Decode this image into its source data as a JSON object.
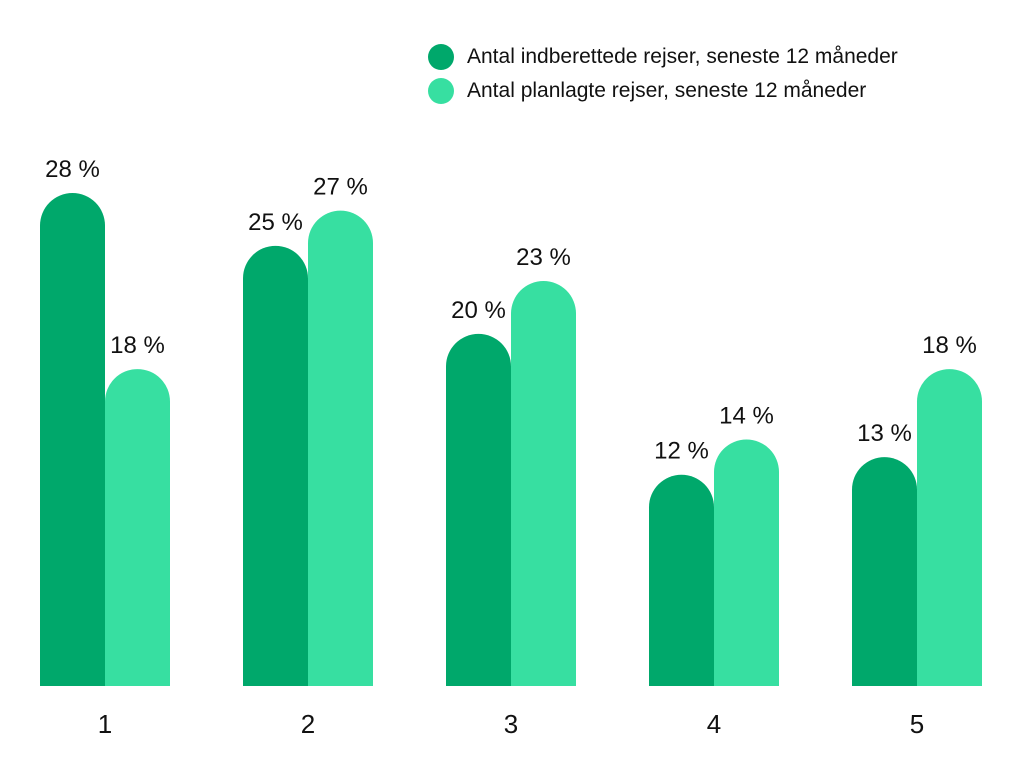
{
  "chart_data": {
    "type": "bar",
    "title": "",
    "xlabel": "",
    "ylabel": "",
    "categories": [
      "1",
      "2",
      "3",
      "4",
      "5"
    ],
    "ylim": [
      0,
      28
    ],
    "grid": false,
    "legend_position": "top-right",
    "series": [
      {
        "name": "Antal indberettede rejser, seneste 12 måneder",
        "color": "#00A86B",
        "values": [
          28,
          25,
          20,
          12,
          13
        ],
        "labels": [
          "28 %",
          "25 %",
          "20 %",
          "12 %",
          "13 %"
        ]
      },
      {
        "name": "Antal planlagte rejser, seneste 12 måneder",
        "color": "#37DFA1",
        "values": [
          18,
          27,
          23,
          14,
          18
        ],
        "labels": [
          "18 %",
          "27 %",
          "23 %",
          "14 %",
          "18 %"
        ]
      }
    ]
  }
}
